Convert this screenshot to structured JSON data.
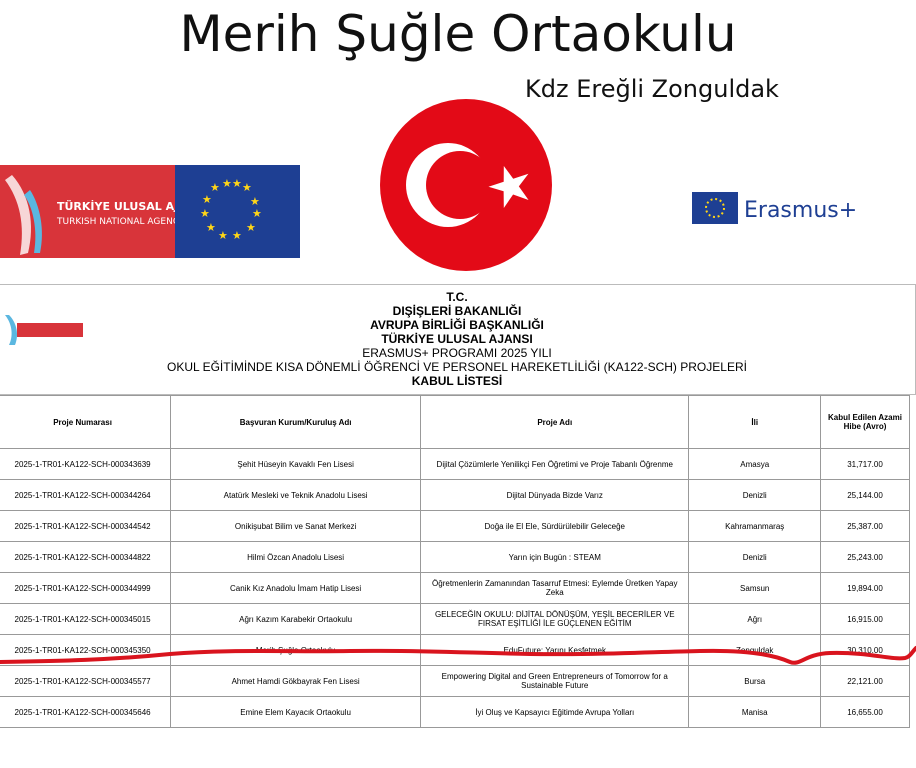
{
  "header": {
    "title": "Merih Şuğle Ortaokulu",
    "subtitle": "Kdz Ereğli Zonguldak"
  },
  "logos": {
    "agency_tr": "TÜRKİYE ULUSAL AJANSI",
    "agency_en": "TURKISH NATIONAL AGENCY",
    "erasmus": "Erasmus+"
  },
  "document": {
    "lines": [
      "T.C.",
      "DIŞİŞLERİ BAKANLIĞI",
      "AVRUPA BİRLİĞİ BAŞKANLIĞI",
      "TÜRKİYE ULUSAL AJANSI",
      "ERASMUS+ PROGRAMI 2025 YILI",
      "OKUL EĞİTİMİNDE KISA DÖNEMLİ ÖĞRENCİ VE PERSONEL HAREKETLİLİĞİ (KA122-SCH) PROJELERİ",
      "KABUL LİSTESİ"
    ]
  },
  "table": {
    "header": [
      "Proje Numarası",
      "Başvuran Kurum/Kuruluş Adı",
      "Proje Adı",
      "İli",
      "Kabul Edilen Azami Hibe (Avro)"
    ],
    "rows": [
      [
        "2025-1-TR01-KA122-SCH-000343639",
        "Şehit Hüseyin Kavaklı Fen Lisesi",
        "Dijital Çözümlerle Yenilikçi Fen Öğretimi ve Proje Tabanlı Öğrenme",
        "Amasya",
        "31,717.00"
      ],
      [
        "2025-1-TR01-KA122-SCH-000344264",
        "Atatürk Mesleki ve Teknik Anadolu Lisesi",
        "Dijital Dünyada Bizde Varız",
        "Denizli",
        "25,144.00"
      ],
      [
        "2025-1-TR01-KA122-SCH-000344542",
        "Onikişubat Bilim ve Sanat Merkezi",
        "Doğa ile El Ele, Sürdürülebilir Geleceğe",
        "Kahramanmaraş",
        "25,387.00"
      ],
      [
        "2025-1-TR01-KA122-SCH-000344822",
        "Hilmi Özcan Anadolu Lisesi",
        "Yarın için Bugün : STEAM",
        "Denizli",
        "25,243.00"
      ],
      [
        "2025-1-TR01-KA122-SCH-000344999",
        "Canik Kız Anadolu İmam Hatip Lisesi",
        "Öğretmenlerin Zamanından Tasarruf Etmesi: Eylemde Üretken Yapay Zeka",
        "Samsun",
        "19,894.00"
      ],
      [
        "2025-1-TR01-KA122-SCH-000345015",
        "Ağrı Kazım Karabekir Ortaokulu",
        "GELECEĞİN OKULU: DİJİTAL DÖNÜŞÜM, YEŞİL BECERİLER VE FIRSAT EŞİTLİĞİ İLE GÜÇLENEN EĞİTİM",
        "Ağrı",
        "16,915.00"
      ],
      [
        "2025-1-TR01-KA122-SCH-000345350",
        "Merih Şuğle Ortaokulu",
        "EduFuture: Yarını Keşfetmek",
        "Zonguldak",
        "30,310.00"
      ],
      [
        "2025-1-TR01-KA122-SCH-000345577",
        "Ahmet Hamdi Gökbayrak Fen Lisesi",
        "Empowering Digital and Green Entrepreneurs of Tomorrow for a Sustainable Future",
        "Bursa",
        "22,121.00"
      ],
      [
        "2025-1-TR01-KA122-SCH-000345646",
        "Emine Elem Kayacık Ortaokulu",
        "İyi Oluş ve Kapsayıcı Eğitimde Avrupa Yolları",
        "Manisa",
        "16,655.00"
      ]
    ]
  }
}
